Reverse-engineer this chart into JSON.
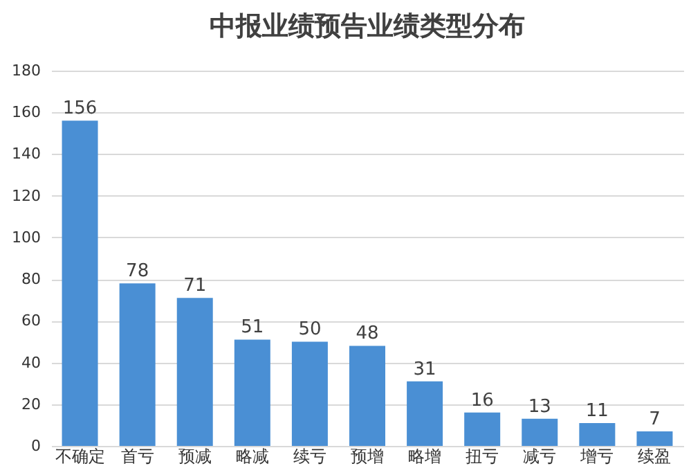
{
  "chart_data": {
    "type": "bar",
    "title": "中报业绩预告业绩类型分布",
    "categories": [
      "不确定",
      "首亏",
      "预减",
      "略减",
      "续亏",
      "预增",
      "略增",
      "扭亏",
      "减亏",
      "增亏",
      "续盈"
    ],
    "values": [
      156,
      78,
      71,
      51,
      50,
      48,
      31,
      16,
      13,
      11,
      7
    ],
    "color": "#4a8fd4",
    "ylim": [
      0,
      180
    ],
    "yticks": [
      0,
      20,
      40,
      60,
      80,
      100,
      120,
      140,
      160,
      180
    ],
    "grid": "y",
    "data_labels": true
  }
}
